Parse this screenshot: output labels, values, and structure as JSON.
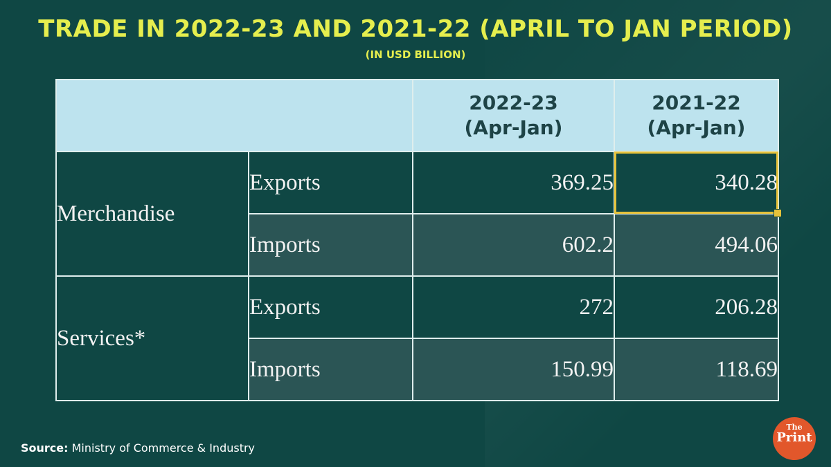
{
  "title": "TRADE IN 2022-23 AND 2021-22 (APRIL TO JAN PERIOD)",
  "subtitle": "(IN USD BILLION)",
  "source_label": "Source:",
  "source_text": "Ministry of Commerce & Industry",
  "logo_text": {
    "the": "The",
    "print": "Print"
  },
  "colors": {
    "background": "#0f4744",
    "title": "#e5ee4e",
    "header_fill": "#bde3ee",
    "import_row_fill": "#2b5555",
    "selection": "#e6c23a",
    "logo": "#e2572b"
  },
  "chart_data": {
    "type": "table",
    "columns": [
      {
        "line1": "2022-23",
        "line2": "(Apr-Jan)"
      },
      {
        "line1": "2021-22",
        "line2": "(Apr-Jan)"
      }
    ],
    "groups": [
      {
        "category": "Merchandise",
        "rows": [
          {
            "flow": "Exports",
            "values": [
              "369.25",
              "340.28"
            ]
          },
          {
            "flow": "Imports",
            "values": [
              "602.2",
              "494.06"
            ]
          }
        ]
      },
      {
        "category": "Services*",
        "rows": [
          {
            "flow": "Exports",
            "values": [
              "272",
              "206.28"
            ]
          },
          {
            "flow": "Imports",
            "values": [
              "150.99",
              "118.69"
            ]
          }
        ]
      }
    ]
  }
}
